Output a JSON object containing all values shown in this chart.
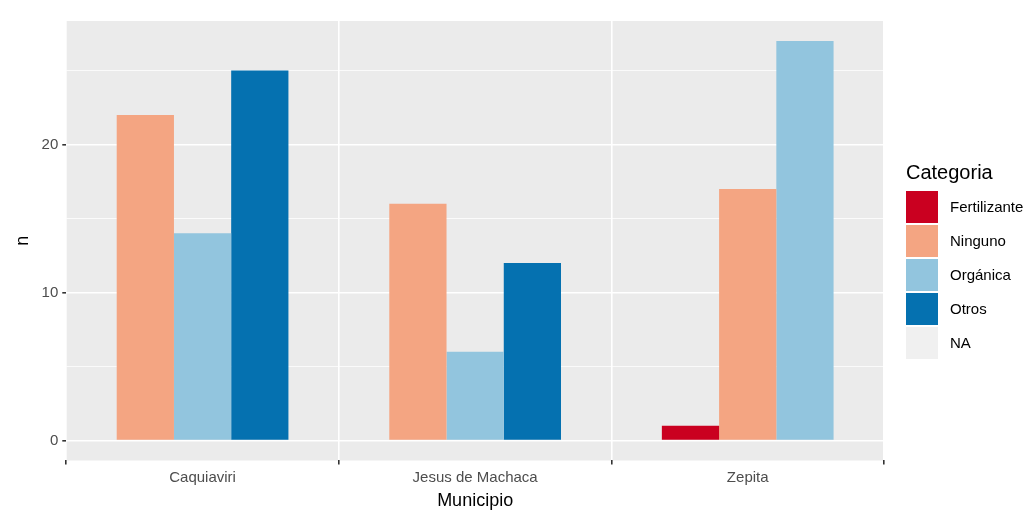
{
  "chart_data": {
    "type": "bar",
    "xlabel": "Municipio",
    "ylabel": "n",
    "legend_title": "Categoria",
    "categories": [
      "Caquiaviri",
      "Jesus de Machaca",
      "Zepita"
    ],
    "series": [
      {
        "name": "Fertilizante",
        "color": "#ca0020",
        "values": [
          null,
          null,
          1
        ]
      },
      {
        "name": "Ninguno",
        "color": "#f4a582",
        "values": [
          22,
          16,
          17
        ]
      },
      {
        "name": "Orgánica",
        "color": "#92c5de",
        "values": [
          14,
          6,
          27
        ]
      },
      {
        "name": "Otros",
        "color": "#0571b0",
        "values": [
          25,
          12,
          null
        ]
      },
      {
        "name": "NA",
        "color": "#f0f0f0",
        "values": [
          null,
          null,
          null
        ]
      }
    ],
    "ylim": [
      -1.35,
      28.35
    ],
    "yticks": [
      0,
      10,
      20
    ],
    "grid": true,
    "legend": "right"
  }
}
